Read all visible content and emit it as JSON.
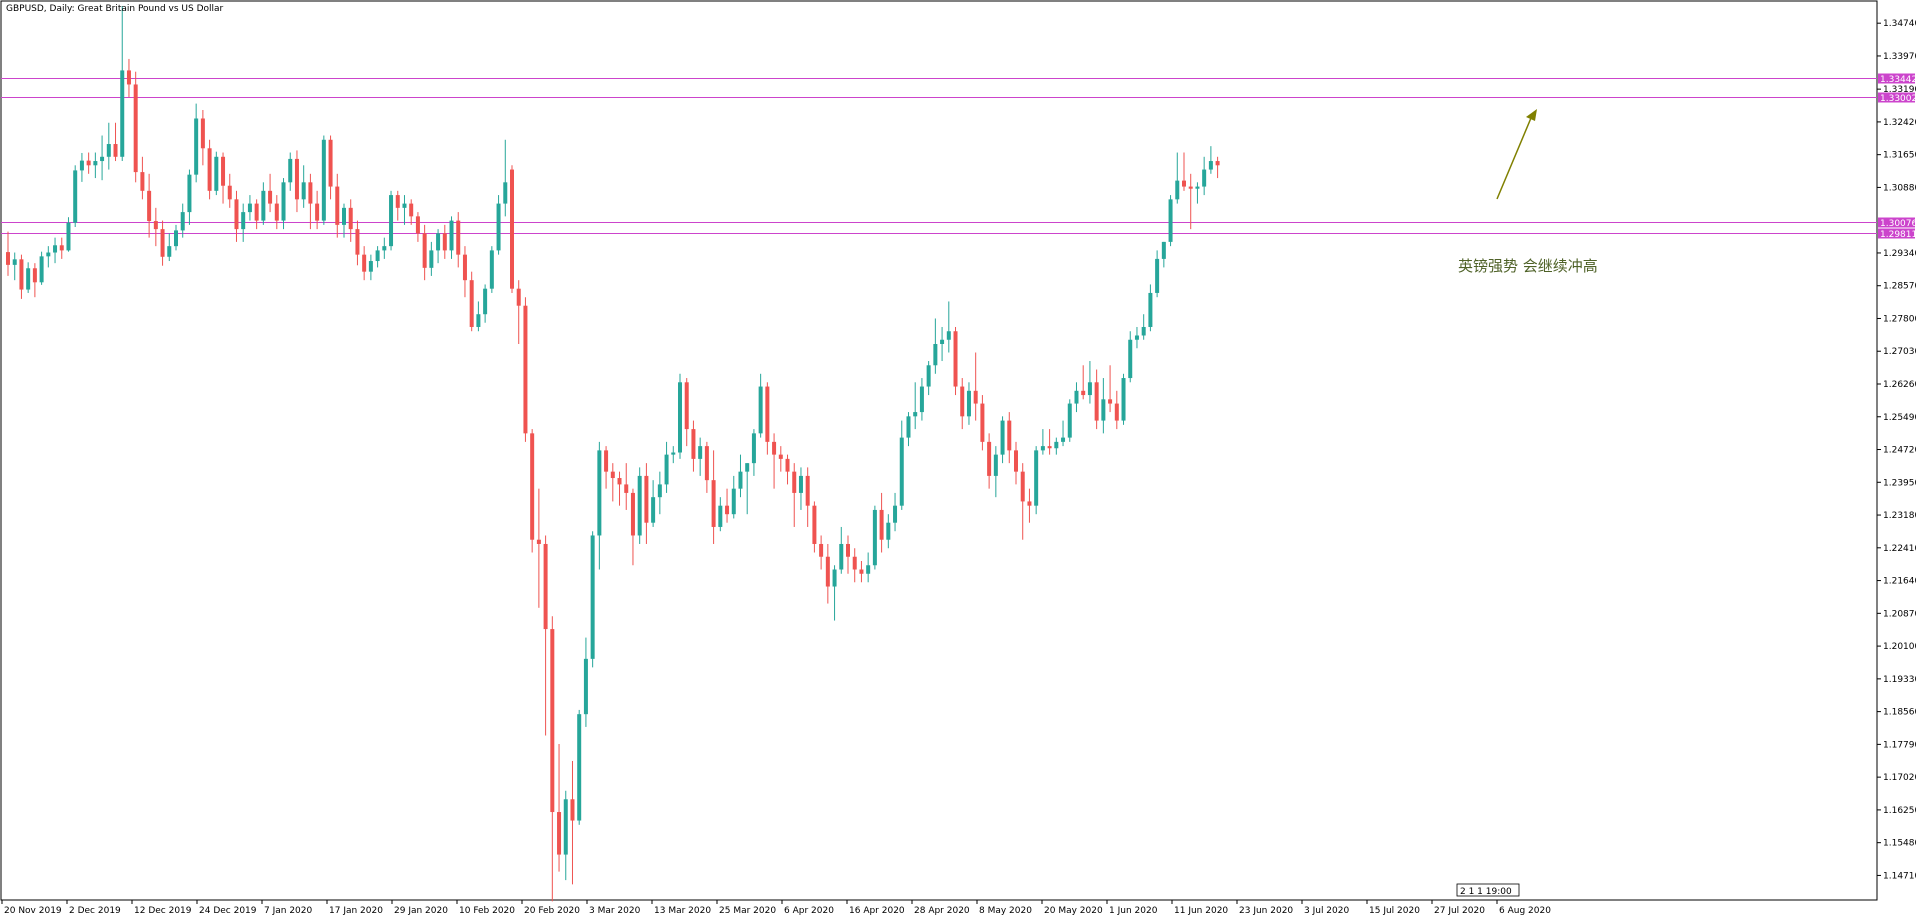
{
  "window": {
    "title": "GBPUSD, Daily:  Great Britain Pound vs US Dollar"
  },
  "chart_data": {
    "type": "candlestick",
    "symbol": "GBPUSD",
    "timeframe": "Daily",
    "description": "Great Britain Pound vs US Dollar",
    "grid": false,
    "ylim": [
      1.1425,
      1.3505
    ],
    "y_ticks": [
      "1.34740",
      "1.33970",
      "1.33190",
      "1.32420",
      "1.31650",
      "1.30880",
      "1.29340",
      "1.28570",
      "1.27800",
      "1.27030",
      "1.26260",
      "1.25490",
      "1.24720",
      "1.23950",
      "1.23180",
      "1.22410",
      "1.21640",
      "1.20870",
      "1.20100",
      "1.19330",
      "1.18560",
      "1.17790",
      "1.17020",
      "1.16250",
      "1.15480",
      "1.14710"
    ],
    "x_labels": [
      "20 Nov 2019",
      "2 Dec 2019",
      "12 Dec 2019",
      "24 Dec 2019",
      "7 Jan 2020",
      "17 Jan 2020",
      "29 Jan 2020",
      "10 Feb 2020",
      "20 Feb 2020",
      "3 Mar 2020",
      "13 Mar 2020",
      "25 Mar 2020",
      "6 Apr 2020",
      "16 Apr 2020",
      "28 Apr 2020",
      "8 May 2020",
      "20 May 2020",
      "1 Jun 2020",
      "11 Jun 2020",
      "23 Jun 2020",
      "3 Jul 2020",
      "15 Jul 2020",
      "27 Jul 2020",
      "6 Aug 2020"
    ],
    "colors": {
      "up": "#26a69a",
      "down": "#ef5350",
      "level": "#cc44cc",
      "arrow": "#808000",
      "note": "#4f6228"
    },
    "horizontal_levels": [
      {
        "label": "1.33442",
        "value": 1.33442
      },
      {
        "label": "1.33002",
        "value": 1.33002
      },
      {
        "label": "1.30076",
        "value": 1.30076
      },
      {
        "label": "1.29811",
        "value": 1.29811
      }
    ],
    "annotation": {
      "text": "英镑强势 会继续冲高",
      "arrow": "up-right"
    },
    "time_marker": "2 1 1 19:00",
    "candles": [
      [
        1.2936,
        1.2984,
        1.288,
        1.2906
      ],
      [
        1.2906,
        1.2935,
        1.287,
        1.2919
      ],
      [
        1.2919,
        1.293,
        1.2826,
        1.2848
      ],
      [
        1.2848,
        1.2912,
        1.284,
        1.2898
      ],
      [
        1.2898,
        1.291,
        1.283,
        1.2865
      ],
      [
        1.2865,
        1.2937,
        1.2859,
        1.2926
      ],
      [
        1.2926,
        1.295,
        1.29,
        1.2935
      ],
      [
        1.2935,
        1.297,
        1.291,
        1.2952
      ],
      [
        1.2952,
        1.297,
        1.292,
        1.294
      ],
      [
        1.294,
        1.3018,
        1.2937,
        1.3005
      ],
      [
        1.3005,
        1.314,
        1.2995,
        1.3128
      ],
      [
        1.3128,
        1.3169,
        1.3101,
        1.3151
      ],
      [
        1.3151,
        1.317,
        1.312,
        1.314
      ],
      [
        1.314,
        1.317,
        1.311,
        1.315
      ],
      [
        1.315,
        1.321,
        1.3105,
        1.316
      ],
      [
        1.316,
        1.324,
        1.313,
        1.319
      ],
      [
        1.319,
        1.324,
        1.315,
        1.316
      ],
      [
        1.316,
        1.3514,
        1.315,
        1.3363
      ],
      [
        1.3363,
        1.339,
        1.33,
        1.333
      ],
      [
        1.333,
        1.336,
        1.31,
        1.3124
      ],
      [
        1.3124,
        1.316,
        1.306,
        1.308
      ],
      [
        1.308,
        1.312,
        1.297,
        1.3009
      ],
      [
        1.3009,
        1.304,
        1.295,
        1.299
      ],
      [
        1.299,
        1.301,
        1.2904,
        1.2925
      ],
      [
        1.2925,
        1.298,
        1.2915,
        1.295
      ],
      [
        1.295,
        1.3,
        1.294,
        1.2987
      ],
      [
        1.2987,
        1.305,
        1.297,
        1.303
      ],
      [
        1.303,
        1.313,
        1.3,
        1.3118
      ],
      [
        1.3118,
        1.3285,
        1.31,
        1.325
      ],
      [
        1.325,
        1.327,
        1.314,
        1.318
      ],
      [
        1.318,
        1.32,
        1.306,
        1.308
      ],
      [
        1.308,
        1.3172,
        1.307,
        1.316
      ],
      [
        1.316,
        1.317,
        1.305,
        1.3092
      ],
      [
        1.3092,
        1.312,
        1.304,
        1.306
      ],
      [
        1.306,
        1.308,
        1.296,
        1.299
      ],
      [
        1.299,
        1.305,
        1.296,
        1.303
      ],
      [
        1.303,
        1.307,
        1.301,
        1.305
      ],
      [
        1.305,
        1.306,
        1.299,
        1.301
      ],
      [
        1.301,
        1.31,
        1.3,
        1.308
      ],
      [
        1.308,
        1.312,
        1.303,
        1.305
      ],
      [
        1.305,
        1.307,
        1.299,
        1.301
      ],
      [
        1.301,
        1.311,
        1.299,
        1.31
      ],
      [
        1.31,
        1.317,
        1.308,
        1.3155
      ],
      [
        1.3155,
        1.3175,
        1.303,
        1.306
      ],
      [
        1.306,
        1.314,
        1.304,
        1.31
      ],
      [
        1.31,
        1.312,
        1.299,
        1.305
      ],
      [
        1.305,
        1.308,
        1.299,
        1.301
      ],
      [
        1.301,
        1.321,
        1.3,
        1.32
      ],
      [
        1.32,
        1.321,
        1.306,
        1.309
      ],
      [
        1.309,
        1.312,
        1.297,
        1.3
      ],
      [
        1.3,
        1.305,
        1.297,
        1.304
      ],
      [
        1.304,
        1.306,
        1.296,
        1.299
      ],
      [
        1.299,
        1.301,
        1.2905,
        1.293
      ],
      [
        1.293,
        1.295,
        1.287,
        1.289
      ],
      [
        1.289,
        1.293,
        1.287,
        1.2915
      ],
      [
        1.2915,
        1.295,
        1.29,
        1.294
      ],
      [
        1.294,
        1.297,
        1.292,
        1.295
      ],
      [
        1.295,
        1.308,
        1.294,
        1.307
      ],
      [
        1.307,
        1.308,
        1.301,
        1.304
      ],
      [
        1.304,
        1.307,
        1.3,
        1.305
      ],
      [
        1.305,
        1.306,
        1.3,
        1.302
      ],
      [
        1.302,
        1.303,
        1.296,
        1.298
      ],
      [
        1.298,
        1.3,
        1.287,
        1.2899
      ],
      [
        1.2899,
        1.296,
        1.288,
        1.294
      ],
      [
        1.294,
        1.299,
        1.291,
        1.298
      ],
      [
        1.298,
        1.3,
        1.292,
        1.294
      ],
      [
        1.294,
        1.302,
        1.292,
        1.301
      ],
      [
        1.301,
        1.303,
        1.29,
        1.293
      ],
      [
        1.293,
        1.295,
        1.283,
        1.287
      ],
      [
        1.287,
        1.289,
        1.275,
        1.276
      ],
      [
        1.276,
        1.282,
        1.275,
        1.279
      ],
      [
        1.279,
        1.286,
        1.277,
        1.285
      ],
      [
        1.285,
        1.295,
        1.284,
        1.294
      ],
      [
        1.294,
        1.307,
        1.293,
        1.305
      ],
      [
        1.305,
        1.32,
        1.302,
        1.31
      ],
      [
        1.313,
        1.314,
        1.284,
        1.285
      ],
      [
        1.285,
        1.287,
        1.272,
        1.281
      ],
      [
        1.281,
        1.283,
        1.249,
        1.251
      ],
      [
        1.251,
        1.252,
        1.223,
        1.226
      ],
      [
        1.226,
        1.238,
        1.21,
        1.225
      ],
      [
        1.225,
        1.227,
        1.18,
        1.205
      ],
      [
        1.205,
        1.208,
        1.141,
        1.162
      ],
      [
        1.162,
        1.178,
        1.148,
        1.152
      ],
      [
        1.152,
        1.167,
        1.146,
        1.165
      ],
      [
        1.165,
        1.174,
        1.145,
        1.16
      ],
      [
        1.16,
        1.186,
        1.159,
        1.185
      ],
      [
        1.185,
        1.203,
        1.182,
        1.198
      ],
      [
        1.198,
        1.228,
        1.196,
        1.227
      ],
      [
        1.227,
        1.249,
        1.219,
        1.247
      ],
      [
        1.247,
        1.248,
        1.238,
        1.242
      ],
      [
        1.242,
        1.244,
        1.235,
        1.2405
      ],
      [
        1.2405,
        1.242,
        1.234,
        1.239
      ],
      [
        1.239,
        1.244,
        1.233,
        1.237
      ],
      [
        1.237,
        1.238,
        1.22,
        1.227
      ],
      [
        1.227,
        1.243,
        1.225,
        1.241
      ],
      [
        1.241,
        1.244,
        1.225,
        1.23
      ],
      [
        1.23,
        1.24,
        1.229,
        1.236
      ],
      [
        1.236,
        1.242,
        1.232,
        1.239
      ],
      [
        1.239,
        1.249,
        1.237,
        1.246
      ],
      [
        1.246,
        1.248,
        1.244,
        1.2465
      ],
      [
        1.2465,
        1.265,
        1.245,
        1.263
      ],
      [
        1.263,
        1.264,
        1.248,
        1.252
      ],
      [
        1.252,
        1.254,
        1.242,
        1.245
      ],
      [
        1.245,
        1.25,
        1.241,
        1.248
      ],
      [
        1.248,
        1.249,
        1.237,
        1.24
      ],
      [
        1.24,
        1.247,
        1.225,
        1.229
      ],
      [
        1.229,
        1.236,
        1.228,
        1.234
      ],
      [
        1.234,
        1.238,
        1.23,
        1.232
      ],
      [
        1.232,
        1.241,
        1.231,
        1.238
      ],
      [
        1.238,
        1.246,
        1.236,
        1.242
      ],
      [
        1.242,
        1.244,
        1.232,
        1.244
      ],
      [
        1.244,
        1.252,
        1.241,
        1.251
      ],
      [
        1.251,
        1.265,
        1.25,
        1.262
      ],
      [
        1.262,
        1.263,
        1.246,
        1.249
      ],
      [
        1.249,
        1.251,
        1.238,
        1.246
      ],
      [
        1.246,
        1.248,
        1.242,
        1.245
      ],
      [
        1.245,
        1.246,
        1.239,
        1.242
      ],
      [
        1.242,
        1.244,
        1.229,
        1.237
      ],
      [
        1.237,
        1.243,
        1.233,
        1.241
      ],
      [
        1.241,
        1.243,
        1.229,
        1.234
      ],
      [
        1.234,
        1.235,
        1.223,
        1.225
      ],
      [
        1.225,
        1.227,
        1.219,
        1.222
      ],
      [
        1.222,
        1.225,
        1.211,
        1.215
      ],
      [
        1.215,
        1.22,
        1.207,
        1.219
      ],
      [
        1.219,
        1.229,
        1.218,
        1.225
      ],
      [
        1.225,
        1.227,
        1.218,
        1.222
      ],
      [
        1.222,
        1.224,
        1.216,
        1.219
      ],
      [
        1.219,
        1.221,
        1.216,
        1.218
      ],
      [
        1.218,
        1.223,
        1.216,
        1.22
      ],
      [
        1.22,
        1.234,
        1.219,
        1.233
      ],
      [
        1.233,
        1.237,
        1.223,
        1.226
      ],
      [
        1.226,
        1.232,
        1.224,
        1.23
      ],
      [
        1.23,
        1.237,
        1.228,
        1.234
      ],
      [
        1.234,
        1.254,
        1.233,
        1.25
      ],
      [
        1.25,
        1.256,
        1.248,
        1.255
      ],
      [
        1.255,
        1.263,
        1.252,
        1.256
      ],
      [
        1.256,
        1.264,
        1.254,
        1.262
      ],
      [
        1.262,
        1.268,
        1.26,
        1.267
      ],
      [
        1.267,
        1.278,
        1.265,
        1.272
      ],
      [
        1.272,
        1.276,
        1.268,
        1.273
      ],
      [
        1.273,
        1.282,
        1.27,
        1.275
      ],
      [
        1.275,
        1.276,
        1.26,
        1.262
      ],
      [
        1.262,
        1.264,
        1.252,
        1.255
      ],
      [
        1.255,
        1.263,
        1.253,
        1.261
      ],
      [
        1.261,
        1.27,
        1.254,
        1.258
      ],
      [
        1.258,
        1.26,
        1.247,
        1.249
      ],
      [
        1.249,
        1.251,
        1.238,
        1.241
      ],
      [
        1.241,
        1.248,
        1.236,
        1.246
      ],
      [
        1.246,
        1.255,
        1.244,
        1.254
      ],
      [
        1.254,
        1.256,
        1.244,
        1.247
      ],
      [
        1.247,
        1.249,
        1.239,
        1.242
      ],
      [
        1.242,
        1.244,
        1.226,
        1.235
      ],
      [
        1.235,
        1.238,
        1.23,
        1.234
      ],
      [
        1.234,
        1.248,
        1.232,
        1.247
      ],
      [
        1.247,
        1.252,
        1.246,
        1.248
      ],
      [
        1.248,
        1.252,
        1.246,
        1.2475
      ],
      [
        1.2475,
        1.25,
        1.246,
        1.249
      ],
      [
        1.249,
        1.254,
        1.248,
        1.25
      ],
      [
        1.25,
        1.259,
        1.249,
        1.258
      ],
      [
        1.258,
        1.263,
        1.256,
        1.261
      ],
      [
        1.261,
        1.267,
        1.259,
        1.26
      ],
      [
        1.26,
        1.268,
        1.258,
        1.263
      ],
      [
        1.263,
        1.266,
        1.252,
        1.254
      ],
      [
        1.254,
        1.264,
        1.251,
        1.259
      ],
      [
        1.259,
        1.267,
        1.256,
        1.258
      ],
      [
        1.258,
        1.261,
        1.252,
        1.254
      ],
      [
        1.254,
        1.265,
        1.253,
        1.264
      ],
      [
        1.264,
        1.275,
        1.263,
        1.273
      ],
      [
        1.273,
        1.276,
        1.271,
        1.274
      ],
      [
        1.274,
        1.279,
        1.273,
        1.276
      ],
      [
        1.276,
        1.286,
        1.275,
        1.284
      ],
      [
        1.284,
        1.294,
        1.283,
        1.292
      ],
      [
        1.292,
        1.296,
        1.29,
        1.296
      ],
      [
        1.296,
        1.307,
        1.295,
        1.306
      ],
      [
        1.306,
        1.317,
        1.305,
        1.3104
      ],
      [
        1.3104,
        1.317,
        1.308,
        1.309
      ],
      [
        1.309,
        1.312,
        1.299,
        1.3085
      ],
      [
        1.3085,
        1.31,
        1.305,
        1.309
      ],
      [
        1.309,
        1.316,
        1.307,
        1.313
      ],
      [
        1.313,
        1.3185,
        1.312,
        1.315
      ],
      [
        1.315,
        1.316,
        1.311,
        1.314
      ]
    ]
  }
}
